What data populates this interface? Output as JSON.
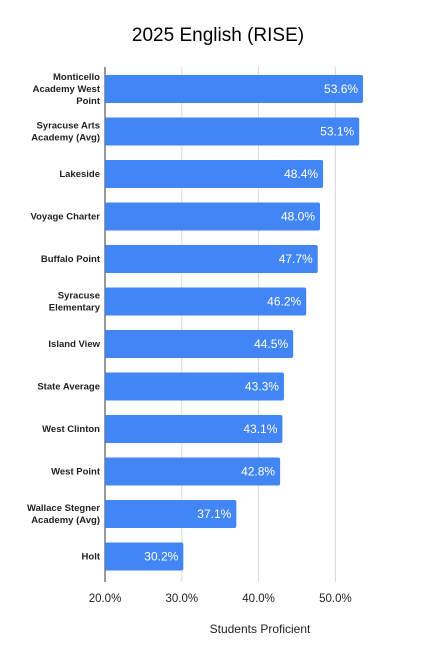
{
  "chart_data": {
    "type": "bar",
    "orientation": "horizontal",
    "title": "2025 English (RISE)",
    "xlabel": "Students Proficient",
    "ylabel": "",
    "categories": [
      "Monticello Academy West Point",
      "Syracuse Arts Academy (Avg)",
      "Lakeside",
      "Voyage Charter",
      "Buffalo Point",
      "Syracuse Elementary",
      "Island View",
      "State Average",
      "West Clinton",
      "West Point",
      "Wallace Stegner Academy (Avg)",
      "Holt"
    ],
    "values": [
      53.6,
      53.1,
      48.4,
      48.0,
      47.7,
      46.2,
      44.5,
      43.3,
      43.1,
      42.8,
      37.1,
      30.2
    ],
    "value_labels": [
      "53.6%",
      "53.1%",
      "48.4%",
      "48.0%",
      "47.7%",
      "46.2%",
      "44.5%",
      "43.3%",
      "43.1%",
      "42.8%",
      "37.1%",
      "30.2%"
    ],
    "xlim": [
      20,
      55
    ],
    "xticks": [
      20,
      30,
      40,
      50
    ],
    "xtick_labels": [
      "20.0%",
      "30.0%",
      "40.0%",
      "50.0%"
    ],
    "grid": true,
    "legend": "none",
    "bar_color": "#4285f4"
  }
}
